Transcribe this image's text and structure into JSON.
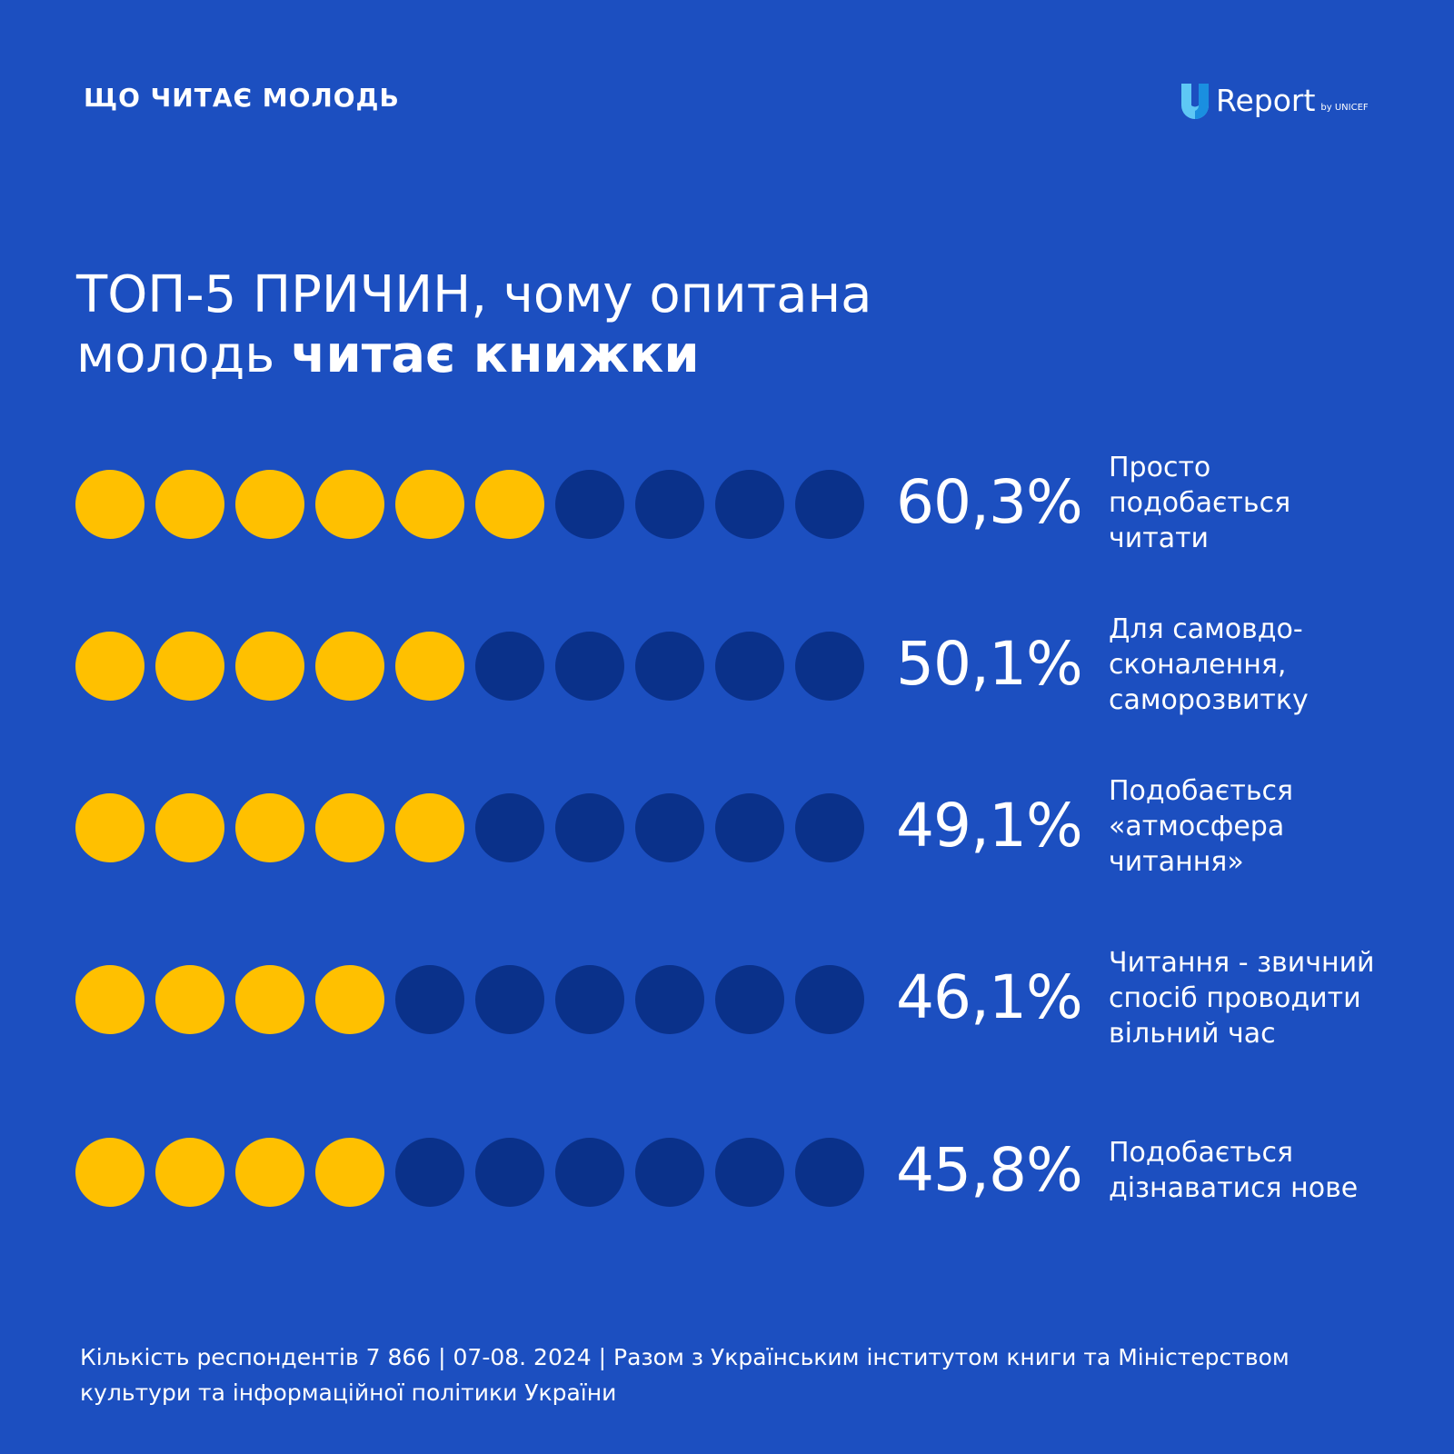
{
  "header": {
    "label": "ЩО ЧИТАЄ МОЛОДЬ",
    "logo_text": "Report",
    "logo_by": "by UNICEF"
  },
  "title": {
    "regular": "ТОП-5 ПРИЧИН, чому опитана молодь ",
    "bold": "читає книжки"
  },
  "colors": {
    "background": "#1c4fc0",
    "filled_dot": "#ffc000",
    "empty_dot": "#0a318a",
    "logo_light": "#5ec8f5",
    "logo_dark": "#1a8fe0"
  },
  "chart_data": {
    "type": "pictogram",
    "dots_per_row": 10,
    "rows": [
      {
        "value": "60,3%",
        "number": 60.3,
        "filled": 6,
        "label": "Просто\nподобається\nчитати"
      },
      {
        "value": "50,1%",
        "number": 50.1,
        "filled": 5,
        "label": "Для самовдо-\nсконалення,\nсаморозвитку"
      },
      {
        "value": "49,1%",
        "number": 49.1,
        "filled": 5,
        "label": "Подобається\n«атмосфера\nчитання»"
      },
      {
        "value": "46,1%",
        "number": 46.1,
        "filled": 4,
        "label": "Читання - звичний\nспосіб проводити\nвільний час"
      },
      {
        "value": "45,8%",
        "number": 45.8,
        "filled": 4,
        "label": "Подобається\nдізнаватися нове"
      }
    ]
  },
  "footer": {
    "text": "Кількість респондентів 7 866 | 07-08. 2024 | Разом з Українським інститутом книги та Міністерством культури та інформаційної політики України"
  }
}
